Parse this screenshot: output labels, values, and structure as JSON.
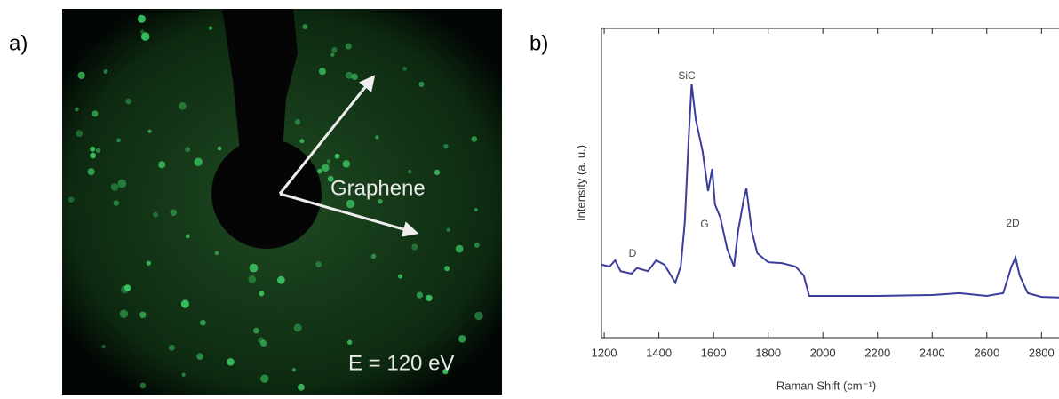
{
  "panel_a": {
    "label": "a)",
    "annotation": "Graphene",
    "energy_label": "E = 120 eV"
  },
  "chart_data": {
    "type": "line",
    "panel_label": "b)",
    "x_label": "Raman Shift (cm⁻¹)",
    "y_label": "Intensity (a. u.)",
    "xlim": [
      1190,
      2890
    ],
    "ylim": [
      0,
      10
    ],
    "xticks": [
      1200,
      1400,
      1600,
      1800,
      2000,
      2200,
      2400,
      2600,
      2800
    ],
    "annotations": [
      "D",
      "SiC",
      "G",
      "2D"
    ],
    "series": [
      {
        "color": "#3a3d9a",
        "x": [
          1190,
          1220,
          1240,
          1260,
          1300,
          1320,
          1360,
          1390,
          1420,
          1460,
          1480,
          1495,
          1510,
          1520,
          1535,
          1560,
          1580,
          1595,
          1605,
          1625,
          1650,
          1675,
          1690,
          1710,
          1720,
          1740,
          1760,
          1800,
          1850,
          1900,
          1930,
          1950,
          2000,
          2200,
          2400,
          2500,
          2600,
          2660,
          2690,
          2705,
          2720,
          2750,
          2800,
          2890
        ],
        "values": [
          2.36,
          2.3,
          2.5,
          2.15,
          2.07,
          2.25,
          2.15,
          2.5,
          2.36,
          1.78,
          2.3,
          3.74,
          6.6,
          8.2,
          7.06,
          6.03,
          4.74,
          5.46,
          4.31,
          3.88,
          2.87,
          2.3,
          3.45,
          4.45,
          4.83,
          3.45,
          2.73,
          2.44,
          2.41,
          2.3,
          2.01,
          1.35,
          1.35,
          1.35,
          1.38,
          1.44,
          1.35,
          1.44,
          2.3,
          2.59,
          2.01,
          1.44,
          1.32,
          1.29
        ]
      }
    ]
  }
}
